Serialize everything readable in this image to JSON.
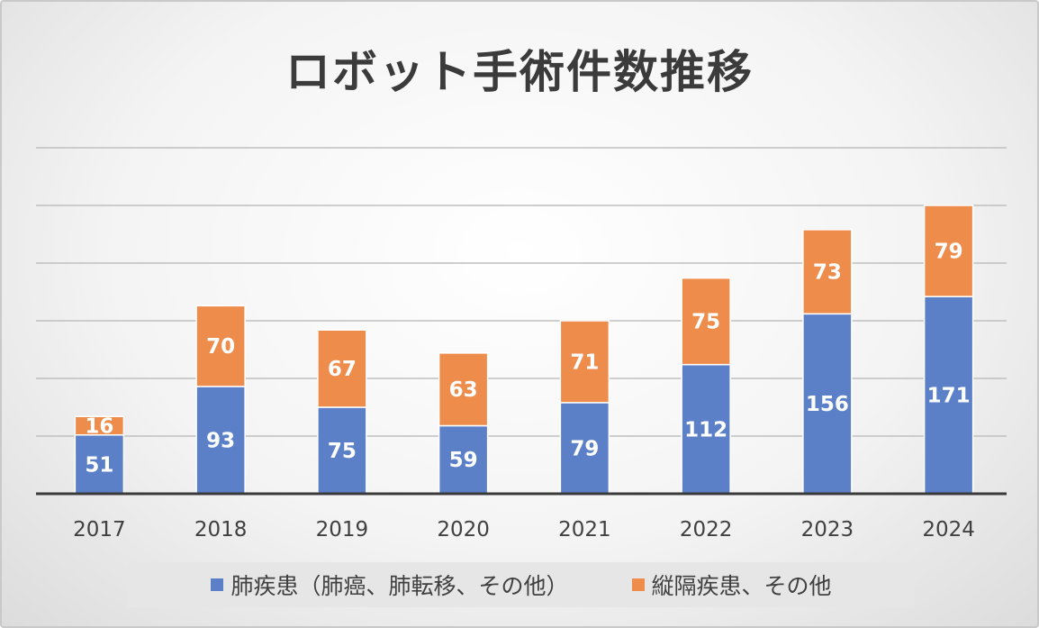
{
  "colors": {
    "series1": "#5b80c8",
    "series2": "#ee8c4c",
    "gridline": "#bfbfbf",
    "axis": "#3a3a3a"
  },
  "chart_data": {
    "type": "bar",
    "stacked": true,
    "title": "ロボット手術件数推移",
    "categories": [
      "2017",
      "2018",
      "2019",
      "2020",
      "2021",
      "2022",
      "2023",
      "2024"
    ],
    "series": [
      {
        "name": "肺疾患（肺癌、肺転移、その他）",
        "values": [
          51,
          93,
          75,
          59,
          79,
          112,
          156,
          171
        ]
      },
      {
        "name": "縦隔疾患、その他",
        "values": [
          16,
          70,
          67,
          63,
          71,
          75,
          73,
          79
        ]
      }
    ],
    "ylim": [
      0,
      300
    ],
    "grid": true,
    "legend": "bottom"
  }
}
